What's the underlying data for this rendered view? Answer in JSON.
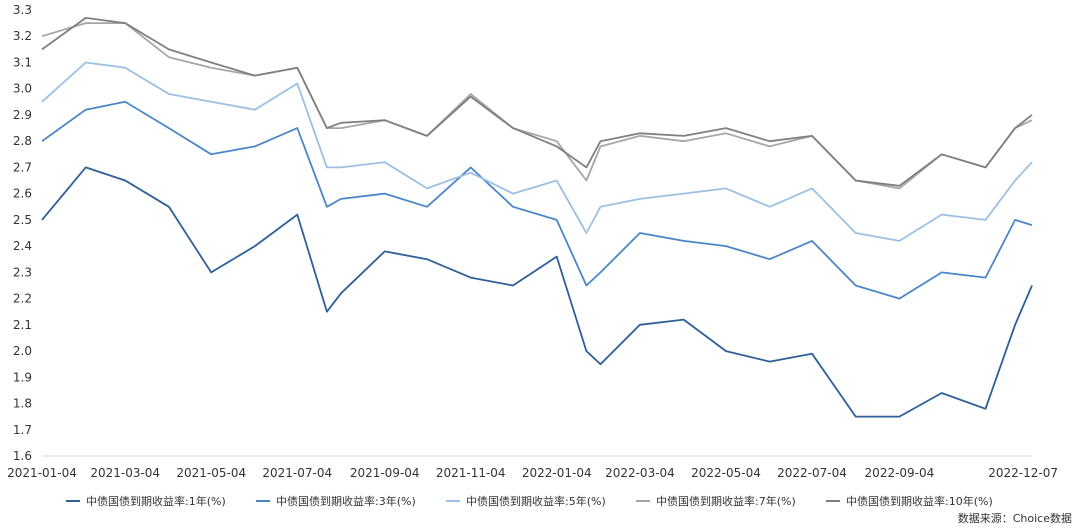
{
  "chart_data": {
    "type": "line",
    "source": "数据来源：Choice数据",
    "xlim": [
      "2021-01-04",
      "2022-12-07"
    ],
    "x_ticks": [
      "2021-01-04",
      "2021-03-04",
      "2021-05-04",
      "2021-07-04",
      "2021-09-04",
      "2021-11-04",
      "2022-01-04",
      "2022-03-04",
      "2022-05-04",
      "2022-07-04",
      "2022-09-04",
      "2022-12-07"
    ],
    "ylim": [
      1.6,
      3.3
    ],
    "y_ticks": [
      1.6,
      1.7,
      1.8,
      1.9,
      2.0,
      2.1,
      2.2,
      2.3,
      2.4,
      2.5,
      2.6,
      2.7,
      2.8,
      2.9,
      3.0,
      3.1,
      3.2,
      3.3
    ],
    "grid": false,
    "legend_position": "bottom",
    "x": [
      "2021-01-04",
      "2021-02-04",
      "2021-03-04",
      "2021-04-04",
      "2021-05-04",
      "2021-06-04",
      "2021-07-04",
      "2021-07-25",
      "2021-08-04",
      "2021-09-04",
      "2021-10-04",
      "2021-11-04",
      "2021-12-04",
      "2022-01-04",
      "2022-01-25",
      "2022-02-04",
      "2022-03-04",
      "2022-04-04",
      "2022-05-04",
      "2022-06-04",
      "2022-07-04",
      "2022-08-04",
      "2022-09-04",
      "2022-10-04",
      "2022-11-04",
      "2022-11-25",
      "2022-12-07"
    ],
    "series": [
      {
        "name": "中债国债到期收益率:1年(%)",
        "color": "#2e5f98",
        "values": [
          2.5,
          2.7,
          2.65,
          2.55,
          2.3,
          2.4,
          2.52,
          2.15,
          2.22,
          2.38,
          2.35,
          2.28,
          2.25,
          2.36,
          2.0,
          1.95,
          2.1,
          2.12,
          2.0,
          1.96,
          1.99,
          1.75,
          1.75,
          1.84,
          1.78,
          2.1,
          2.25
        ]
      },
      {
        "name": "中债国债到期收益率:3年(%)",
        "color": "#4a86c8",
        "values": [
          2.8,
          2.92,
          2.95,
          2.85,
          2.75,
          2.78,
          2.85,
          2.55,
          2.58,
          2.6,
          2.55,
          2.7,
          2.55,
          2.5,
          2.25,
          2.3,
          2.45,
          2.42,
          2.4,
          2.35,
          2.42,
          2.25,
          2.2,
          2.3,
          2.28,
          2.5,
          2.48
        ]
      },
      {
        "name": "中债国债到期收益率:5年(%)",
        "color": "#9cc0e4",
        "values": [
          2.95,
          3.1,
          3.08,
          2.98,
          2.95,
          2.92,
          3.02,
          2.7,
          2.7,
          2.72,
          2.62,
          2.68,
          2.6,
          2.65,
          2.45,
          2.55,
          2.58,
          2.6,
          2.62,
          2.55,
          2.62,
          2.45,
          2.42,
          2.52,
          2.5,
          2.65,
          2.72
        ]
      },
      {
        "name": "中债国债到期收益率:7年(%)",
        "color": "#a6a6a6",
        "values": [
          3.2,
          3.25,
          3.25,
          3.12,
          3.08,
          3.05,
          3.08,
          2.85,
          2.85,
          2.88,
          2.82,
          2.98,
          2.85,
          2.8,
          2.65,
          2.78,
          2.82,
          2.8,
          2.83,
          2.78,
          2.82,
          2.65,
          2.62,
          2.75,
          2.7,
          2.85,
          2.88
        ]
      },
      {
        "name": "中债国债到期收益率:10年(%)",
        "color": "#808080",
        "values": [
          3.15,
          3.27,
          3.25,
          3.15,
          3.1,
          3.05,
          3.08,
          2.85,
          2.87,
          2.88,
          2.82,
          2.97,
          2.85,
          2.78,
          2.7,
          2.8,
          2.83,
          2.82,
          2.85,
          2.8,
          2.82,
          2.65,
          2.63,
          2.75,
          2.7,
          2.85,
          2.9
        ]
      }
    ]
  }
}
